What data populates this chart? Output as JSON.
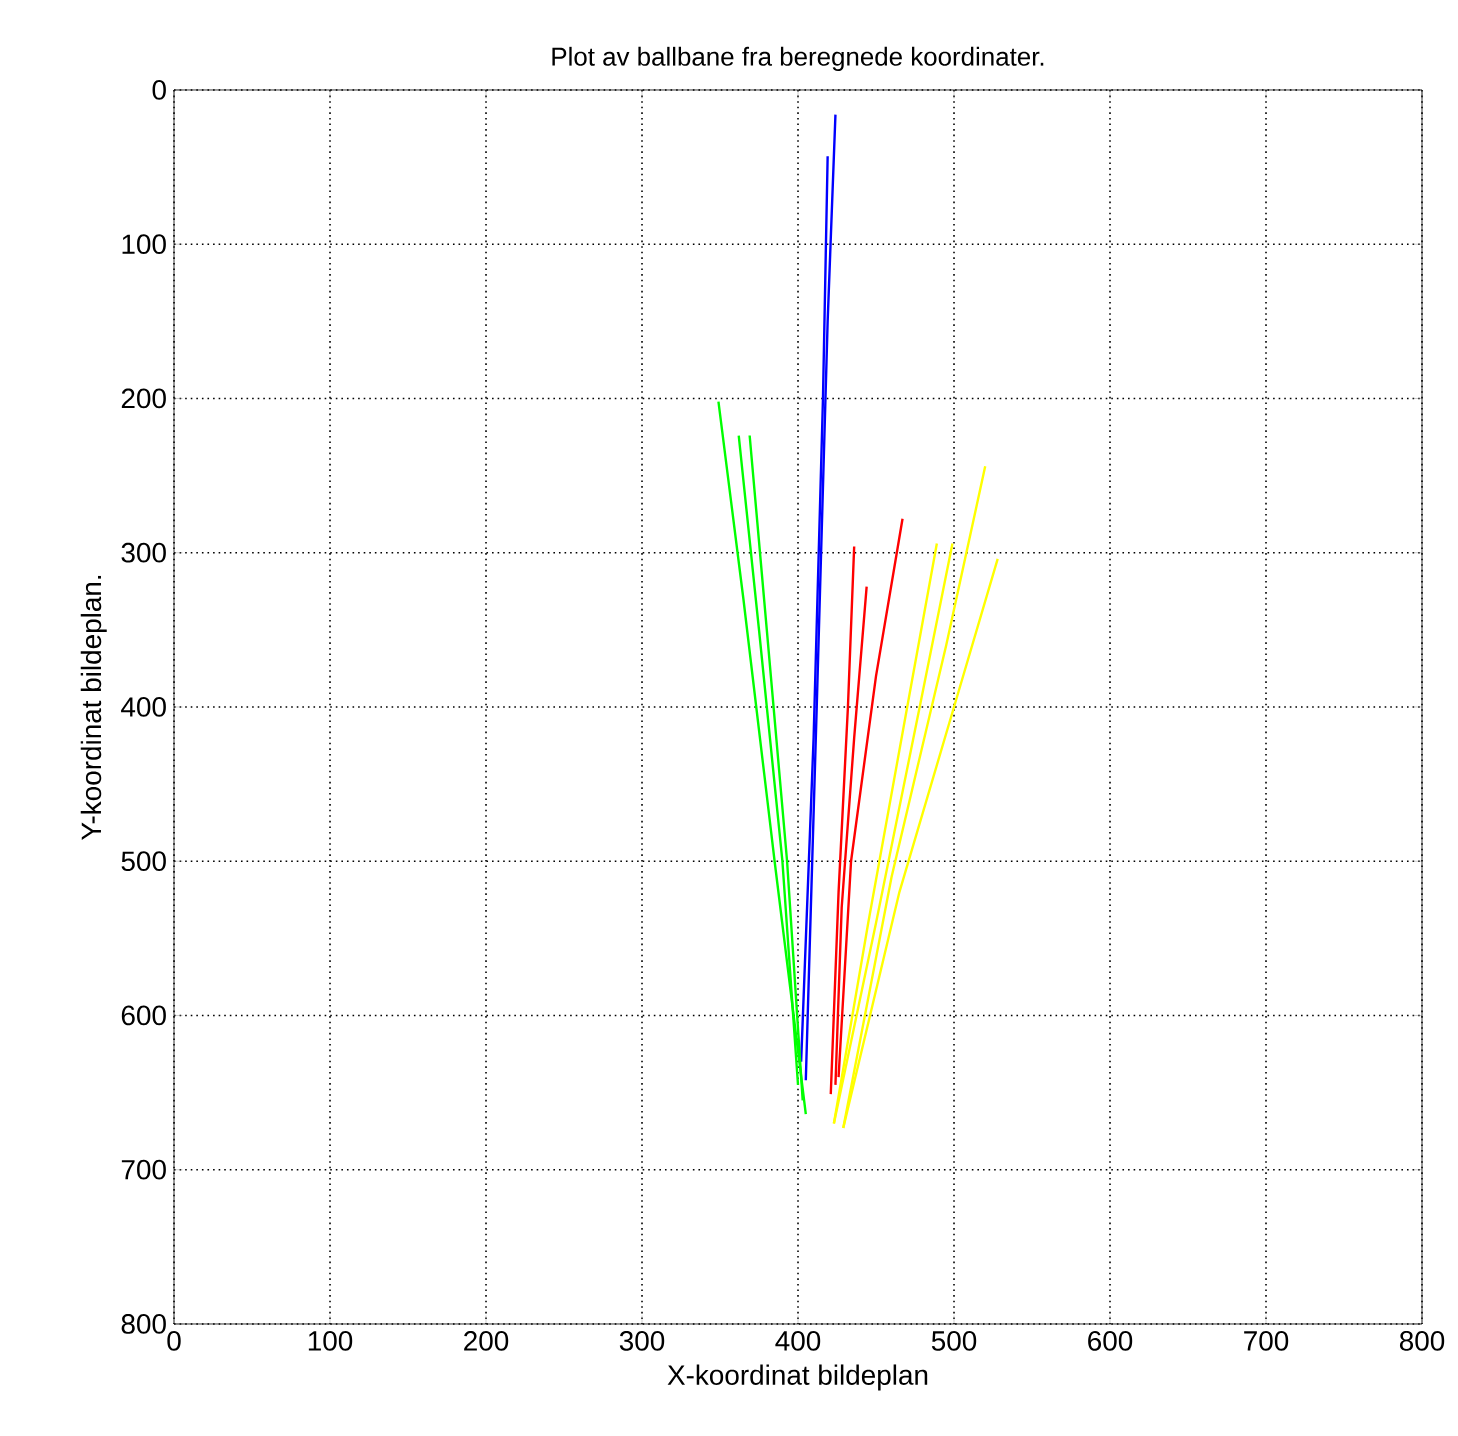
{
  "chart_data": {
    "type": "line",
    "title": "Plot av ballbane fra beregnede koordinater.",
    "xlabel": "X-koordinat bildeplan",
    "ylabel": "Y-koordinat bildeplan.",
    "series": [
      {
        "color": "#0000ff",
        "x": [
          424,
          419,
          412,
          405
        ],
        "values": [
          16,
          150,
          400,
          642
        ]
      },
      {
        "color": "#0000ff",
        "x": [
          419,
          416,
          410,
          402
        ],
        "values": [
          43,
          200,
          420,
          630
        ]
      },
      {
        "color": "#00ff00",
        "x": [
          349,
          365,
          385,
          405
        ],
        "values": [
          202,
          330,
          500,
          664
        ]
      },
      {
        "color": "#00ff00",
        "x": [
          362,
          375,
          390,
          400
        ],
        "values": [
          224,
          350,
          500,
          645
        ]
      },
      {
        "color": "#00ff00",
        "x": [
          369,
          380,
          393,
          403
        ],
        "values": [
          224,
          350,
          500,
          655
        ]
      },
      {
        "color": "#ff0000",
        "x": [
          436,
          432,
          426,
          421
        ],
        "values": [
          296,
          400,
          520,
          651
        ]
      },
      {
        "color": "#ff0000",
        "x": [
          444,
          436,
          428,
          424
        ],
        "values": [
          322,
          420,
          530,
          645
        ]
      },
      {
        "color": "#ff0000",
        "x": [
          467,
          450,
          434,
          426
        ],
        "values": [
          278,
          380,
          500,
          640
        ]
      },
      {
        "color": "#ffff00",
        "x": [
          489,
          470,
          445,
          423
        ],
        "values": [
          294,
          400,
          540,
          670
        ]
      },
      {
        "color": "#ffff00",
        "x": [
          499,
          478,
          450,
          423
        ],
        "values": [
          294,
          400,
          540,
          670
        ]
      },
      {
        "color": "#ffff00",
        "x": [
          520,
          495,
          460,
          429
        ],
        "values": [
          244,
          360,
          510,
          673
        ]
      },
      {
        "color": "#ffff00",
        "x": [
          528,
          500,
          465,
          429
        ],
        "values": [
          304,
          400,
          520,
          673
        ]
      }
    ],
    "xlim": [
      0,
      800
    ],
    "ylim": [
      800,
      0
    ],
    "xticks": [
      0,
      100,
      200,
      300,
      400,
      500,
      600,
      700,
      800
    ],
    "yticks": [
      0,
      100,
      200,
      300,
      400,
      500,
      600,
      700,
      800
    ],
    "grid": true,
    "marker": "none",
    "line_style": "solid"
  }
}
